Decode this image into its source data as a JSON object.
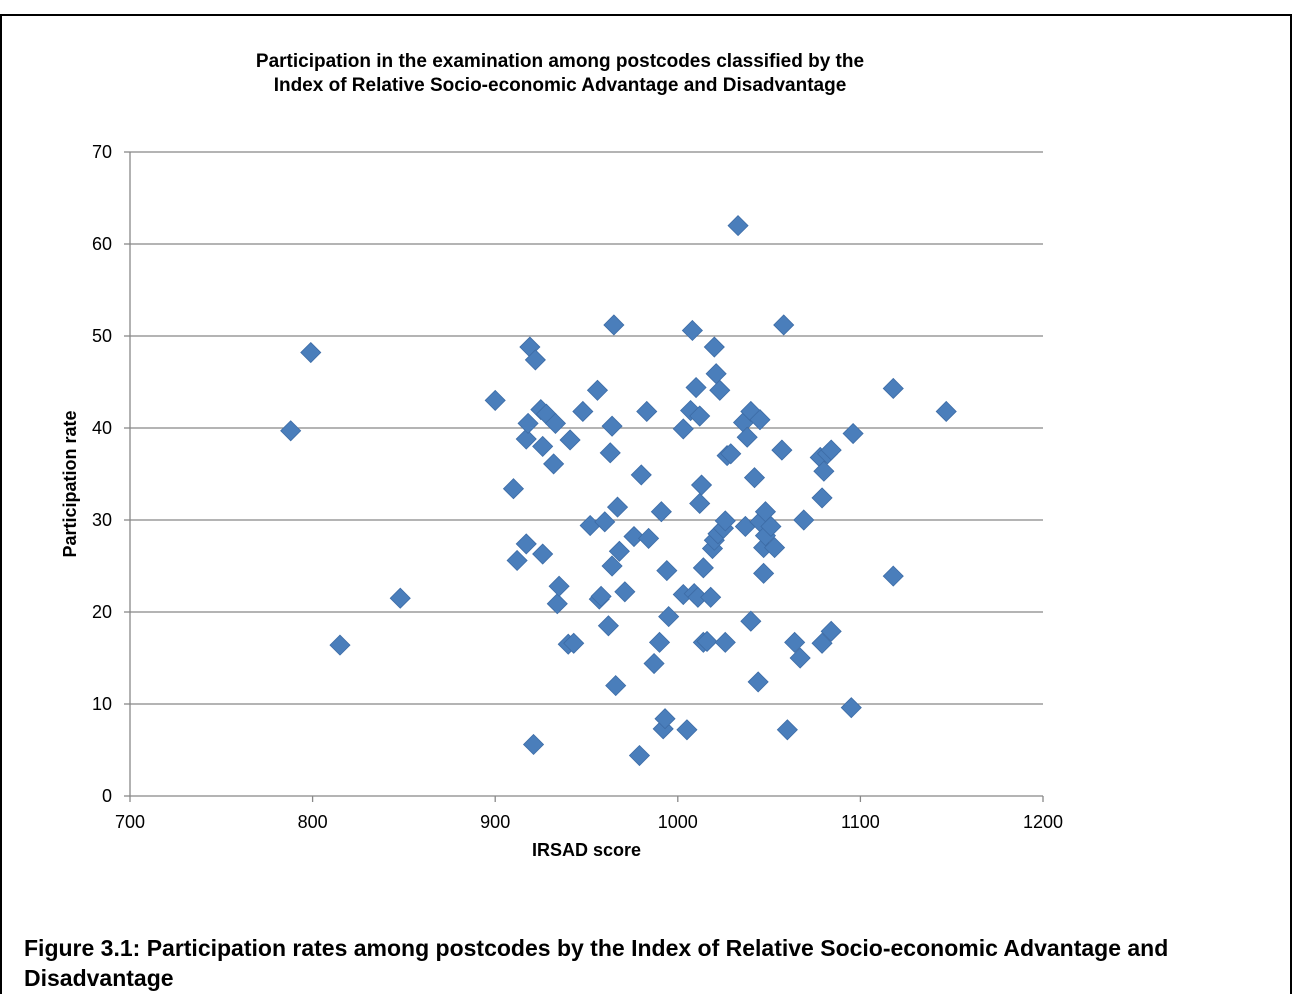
{
  "chart_data": {
    "type": "scatter",
    "title": "Participation in the examination among postcodes classified by the\nIndex of Relative Socio-economic Advantage and Disadvantage",
    "xlabel": "IRSAD score",
    "ylabel": "Participation rate",
    "xlim": [
      700,
      1200
    ],
    "ylim": [
      0,
      70
    ],
    "xticks": [
      700,
      800,
      900,
      1000,
      1100,
      1200
    ],
    "yticks": [
      0,
      10,
      20,
      30,
      40,
      50,
      60,
      70
    ],
    "grid": "horizontal",
    "legend": "none",
    "marker": "diamond",
    "color": "#4a7ebb",
    "points": [
      [
        788,
        39.7
      ],
      [
        799,
        48.2
      ],
      [
        815,
        16.4
      ],
      [
        848,
        21.5
      ],
      [
        900,
        43.0
      ],
      [
        910,
        33.4
      ],
      [
        912,
        25.6
      ],
      [
        917,
        27.4
      ],
      [
        917,
        38.8
      ],
      [
        918,
        40.5
      ],
      [
        919,
        48.8
      ],
      [
        921,
        5.6
      ],
      [
        922,
        47.4
      ],
      [
        925,
        42.0
      ],
      [
        926,
        38.0
      ],
      [
        926,
        26.3
      ],
      [
        928,
        41.5
      ],
      [
        932,
        36.1
      ],
      [
        933,
        40.5
      ],
      [
        934,
        20.9
      ],
      [
        935,
        22.8
      ],
      [
        940,
        16.5
      ],
      [
        941,
        38.7
      ],
      [
        943,
        16.6
      ],
      [
        948,
        41.8
      ],
      [
        952,
        29.4
      ],
      [
        956,
        44.1
      ],
      [
        957,
        21.4
      ],
      [
        958,
        21.7
      ],
      [
        960,
        29.8
      ],
      [
        962,
        18.5
      ],
      [
        963,
        37.3
      ],
      [
        964,
        25.0
      ],
      [
        964,
        40.2
      ],
      [
        965,
        51.2
      ],
      [
        966,
        12.0
      ],
      [
        967,
        31.4
      ],
      [
        968,
        26.6
      ],
      [
        971,
        22.2
      ],
      [
        976,
        28.2
      ],
      [
        979,
        4.4
      ],
      [
        980,
        34.9
      ],
      [
        983,
        41.8
      ],
      [
        984,
        28.0
      ],
      [
        987,
        14.4
      ],
      [
        990,
        16.7
      ],
      [
        991,
        30.9
      ],
      [
        992,
        7.3
      ],
      [
        993,
        8.4
      ],
      [
        994,
        24.5
      ],
      [
        995,
        19.5
      ],
      [
        1003,
        39.9
      ],
      [
        1003,
        21.9
      ],
      [
        1005,
        7.2
      ],
      [
        1007,
        41.9
      ],
      [
        1008,
        50.6
      ],
      [
        1009,
        22.0
      ],
      [
        1010,
        44.4
      ],
      [
        1011,
        21.6
      ],
      [
        1012,
        41.3
      ],
      [
        1012,
        31.8
      ],
      [
        1013,
        33.8
      ],
      [
        1014,
        24.8
      ],
      [
        1014,
        16.7
      ],
      [
        1016,
        16.8
      ],
      [
        1018,
        21.6
      ],
      [
        1019,
        26.9
      ],
      [
        1020,
        27.8
      ],
      [
        1020,
        48.8
      ],
      [
        1021,
        45.9
      ],
      [
        1022,
        28.5
      ],
      [
        1023,
        44.1
      ],
      [
        1025,
        29.1
      ],
      [
        1026,
        29.9
      ],
      [
        1026,
        16.7
      ],
      [
        1027,
        37.0
      ],
      [
        1029,
        37.2
      ],
      [
        1033,
        62.0
      ],
      [
        1036,
        40.6
      ],
      [
        1037,
        29.3
      ],
      [
        1038,
        39.0
      ],
      [
        1040,
        41.8
      ],
      [
        1040,
        19.0
      ],
      [
        1042,
        34.6
      ],
      [
        1044,
        12.4
      ],
      [
        1045,
        40.9
      ],
      [
        1045,
        29.8
      ],
      [
        1047,
        27.0
      ],
      [
        1047,
        24.2
      ],
      [
        1048,
        30.9
      ],
      [
        1048,
        28.3
      ],
      [
        1051,
        29.3
      ],
      [
        1053,
        27.0
      ],
      [
        1057,
        37.6
      ],
      [
        1058,
        51.2
      ],
      [
        1060,
        7.2
      ],
      [
        1064,
        16.7
      ],
      [
        1067,
        15.0
      ],
      [
        1069,
        30.0
      ],
      [
        1078,
        36.8
      ],
      [
        1079,
        32.4
      ],
      [
        1079,
        16.6
      ],
      [
        1080,
        35.3
      ],
      [
        1082,
        37.2
      ],
      [
        1084,
        17.9
      ],
      [
        1084,
        37.6
      ],
      [
        1095,
        9.6
      ],
      [
        1096,
        39.4
      ],
      [
        1118,
        44.3
      ],
      [
        1118,
        23.9
      ],
      [
        1147,
        41.8
      ]
    ]
  },
  "caption": "Figure 3.1: Participation rates among postcodes by the Index of Relative Socio-economic Advantage and Disadvantage"
}
